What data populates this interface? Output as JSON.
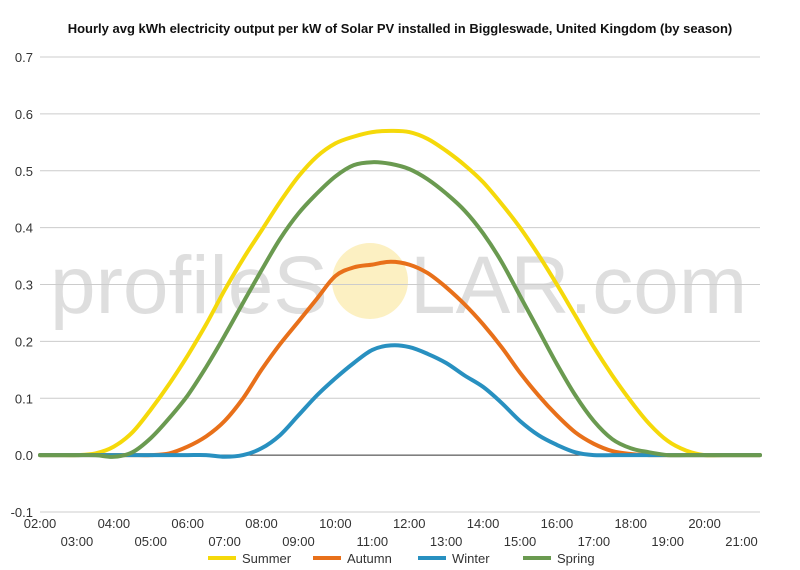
{
  "chart_data": {
    "type": "line",
    "title": "Hourly avg kWh electricity output per kW of Solar PV installed in Biggleswade, United Kingdom (by season)",
    "xlabel": "",
    "ylabel": "",
    "ylim": [
      -0.1,
      0.7
    ],
    "yticks": [
      "-0.1",
      "0.0",
      "0.1",
      "0.2",
      "0.3",
      "0.4",
      "0.5",
      "0.6",
      "0.7"
    ],
    "xlim": [
      2,
      21.5
    ],
    "xticks_upper": [
      "02:00",
      "04:00",
      "06:00",
      "08:00",
      "10:00",
      "12:00",
      "14:00",
      "16:00",
      "18:00",
      "20:00"
    ],
    "xticks_lower": [
      "03:00",
      "05:00",
      "07:00",
      "09:00",
      "11:00",
      "13:00",
      "15:00",
      "17:00",
      "19:00",
      "21:00"
    ],
    "grid": true,
    "legend_position": "bottom",
    "watermark": {
      "left": "profileS",
      "right": "LAR.com"
    },
    "x": [
      2,
      2.5,
      3,
      3.5,
      4,
      4.5,
      5,
      5.5,
      6,
      6.5,
      7,
      7.5,
      8,
      8.5,
      9,
      9.5,
      10,
      10.5,
      11,
      11.5,
      12,
      12.5,
      13,
      13.5,
      14,
      14.5,
      15,
      15.5,
      16,
      16.5,
      17,
      17.5,
      18,
      18.5,
      19,
      19.5,
      20,
      20.5,
      21,
      21.5
    ],
    "series": [
      {
        "name": "Summer",
        "color": "#f5d90a",
        "values": [
          0,
          0,
          0,
          0.003,
          0.015,
          0.04,
          0.08,
          0.125,
          0.175,
          0.23,
          0.29,
          0.345,
          0.395,
          0.445,
          0.49,
          0.525,
          0.548,
          0.56,
          0.568,
          0.57,
          0.568,
          0.556,
          0.535,
          0.51,
          0.48,
          0.442,
          0.4,
          0.352,
          0.3,
          0.245,
          0.19,
          0.14,
          0.095,
          0.055,
          0.025,
          0.008,
          0,
          0,
          0,
          0
        ]
      },
      {
        "name": "Autumn",
        "color": "#e8701a",
        "values": [
          0,
          0,
          0,
          0,
          0,
          0,
          0,
          0.003,
          0.015,
          0.033,
          0.06,
          0.1,
          0.15,
          0.195,
          0.235,
          0.275,
          0.315,
          0.33,
          0.335,
          0.34,
          0.335,
          0.32,
          0.295,
          0.265,
          0.23,
          0.19,
          0.145,
          0.105,
          0.07,
          0.04,
          0.02,
          0.007,
          0.002,
          0,
          0,
          0,
          0,
          0,
          0,
          0
        ]
      },
      {
        "name": "Winter",
        "color": "#2890c0",
        "values": [
          0,
          0,
          0,
          0,
          0,
          0,
          0,
          0,
          0,
          0,
          -0.003,
          0,
          0.012,
          0.035,
          0.07,
          0.105,
          0.135,
          0.162,
          0.185,
          0.193,
          0.19,
          0.178,
          0.162,
          0.14,
          0.12,
          0.092,
          0.06,
          0.035,
          0.018,
          0.005,
          0,
          0,
          0,
          0,
          0,
          0,
          0,
          0,
          0,
          0
        ]
      },
      {
        "name": "Spring",
        "color": "#6a9a50",
        "values": [
          0,
          0,
          0,
          0,
          -0.003,
          0.005,
          0.03,
          0.065,
          0.105,
          0.155,
          0.21,
          0.268,
          0.325,
          0.38,
          0.425,
          0.46,
          0.49,
          0.51,
          0.515,
          0.512,
          0.503,
          0.485,
          0.46,
          0.43,
          0.39,
          0.34,
          0.28,
          0.22,
          0.16,
          0.105,
          0.06,
          0.028,
          0.012,
          0.005,
          0,
          0,
          0,
          0,
          0,
          0
        ]
      }
    ]
  }
}
